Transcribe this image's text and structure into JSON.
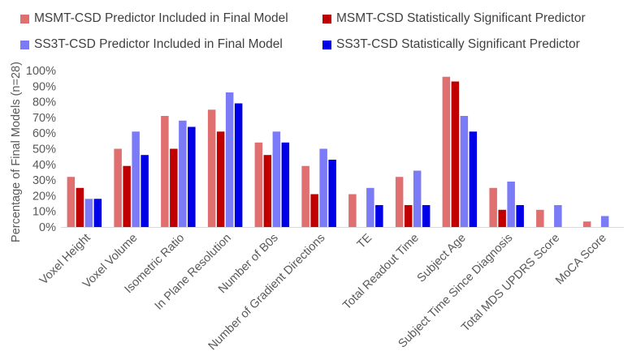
{
  "chart_data": {
    "type": "bar",
    "ylabel": "Percentage of Final Models (n=28)",
    "ylim": [
      0,
      100
    ],
    "yticks": [
      "0%",
      "10%",
      "20%",
      "30%",
      "40%",
      "50%",
      "60%",
      "70%",
      "80%",
      "90%",
      "100%"
    ],
    "grid": false,
    "legend_position": "top",
    "categories": [
      "Voxel Height",
      "Voxel Volume",
      "Isometric Ratio",
      "In Plane Resolution",
      "Number of B0s",
      "Number of Gradient Directions",
      "TE",
      "Total Readout Time",
      "Subject Age",
      "Subject Time Since Diagnosis",
      "Total MDS UPDRS Score",
      "MoCA Score"
    ],
    "series": [
      {
        "name": "MSMT-CSD Predictor Included in Final Model",
        "color": "#E07070",
        "values": [
          32,
          50,
          71,
          75,
          54,
          39,
          21,
          32,
          96,
          25,
          11,
          3.5
        ]
      },
      {
        "name": "MSMT-CSD Statistically Significant Predictor",
        "color": "#C00000",
        "values": [
          25,
          39,
          50,
          61,
          46,
          21,
          0,
          14,
          93,
          11,
          0,
          0
        ]
      },
      {
        "name": "SS3T-CSD Predictor Included in Final Model",
        "color": "#7B7BF7",
        "values": [
          18,
          61,
          68,
          86,
          61,
          50,
          25,
          36,
          71,
          29,
          14,
          7
        ]
      },
      {
        "name": "SS3T-CSD Statistically Significant Predictor",
        "color": "#0000E6",
        "values": [
          18,
          46,
          64,
          79,
          54,
          43,
          14,
          14,
          61,
          14,
          0,
          0
        ]
      }
    ]
  }
}
